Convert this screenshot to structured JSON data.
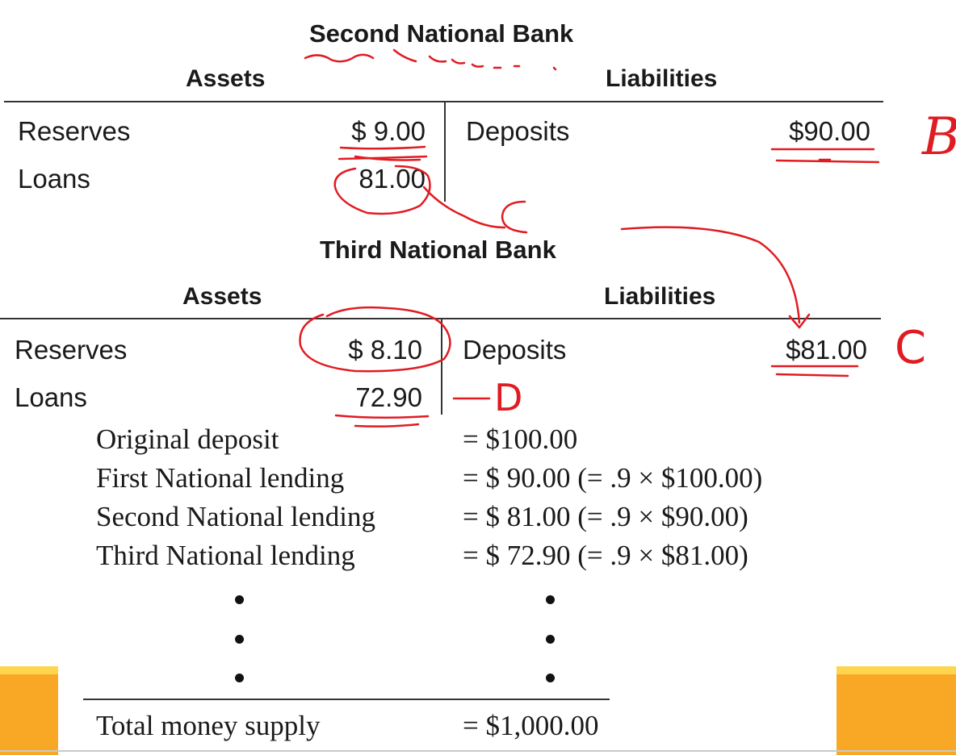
{
  "second_bank": {
    "title": "Second National Bank",
    "assets_label": "Assets",
    "liabilities_label": "Liabilities",
    "rows": [
      {
        "label": "Reserves",
        "value": "$ 9.00"
      },
      {
        "label": "Loans",
        "value": "81.00"
      }
    ],
    "deposits_label": "Deposits",
    "deposits_value": "$90.00"
  },
  "third_bank": {
    "title": "Third National Bank",
    "assets_label": "Assets",
    "liabilities_label": "Liabilities",
    "rows": [
      {
        "label": "Reserves",
        "value": "$ 8.10"
      },
      {
        "label": "Loans",
        "value": "72.90"
      }
    ],
    "deposits_label": "Deposits",
    "deposits_value": "$81.00"
  },
  "calculation": {
    "rows": [
      {
        "label": "Original deposit",
        "value": "= $100.00"
      },
      {
        "label": "First National lending",
        "value": "= $ 90.00 (= .9 × $100.00)"
      },
      {
        "label": "Second National lending",
        "value": "= $ 81.00 (= .9 × $90.00)"
      },
      {
        "label": "Third National lending",
        "value": "= $ 72.90 (= .9 × $81.00)"
      }
    ],
    "total_label": "Total money supply",
    "total_value": "= $1,000.00"
  },
  "annotations": {
    "mark_b": "B",
    "mark_c_loans": "C",
    "mark_c_deposits": "C",
    "mark_d": "D"
  },
  "colors": {
    "ink": "#e11b22",
    "accent_bar": "#f9a825",
    "accent_bar_top": "#ffd54f"
  }
}
